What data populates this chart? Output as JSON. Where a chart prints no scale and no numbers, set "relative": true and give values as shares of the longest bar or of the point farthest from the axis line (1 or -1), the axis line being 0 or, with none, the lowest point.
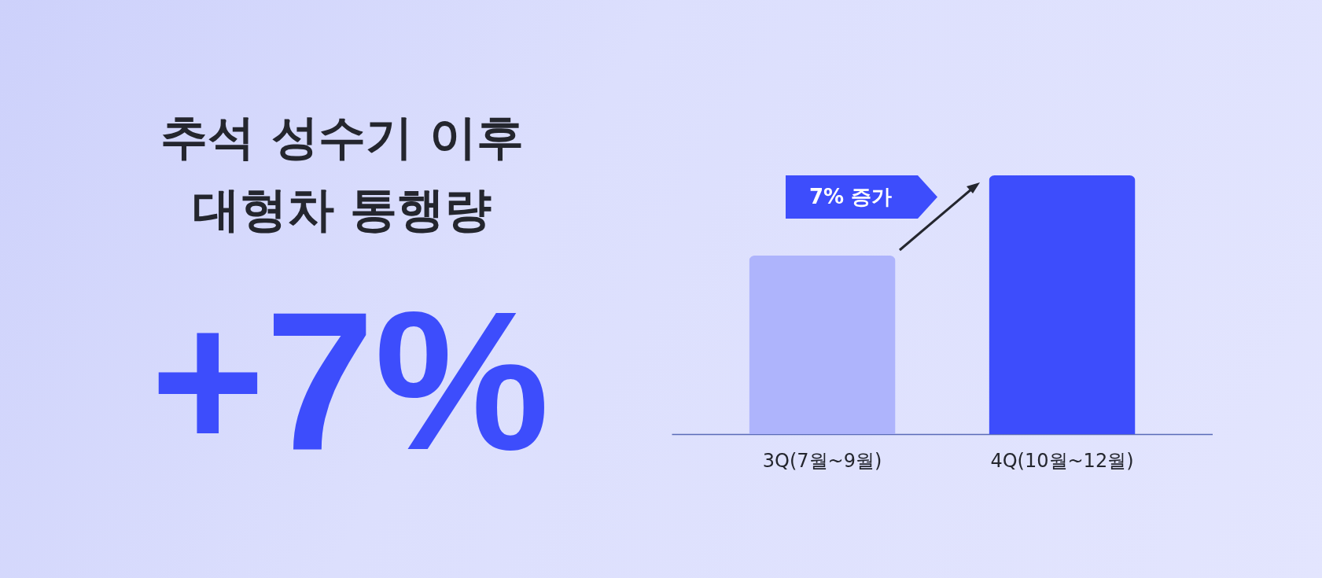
{
  "chart_data": {
    "type": "bar",
    "title": "추석 성수기 이후\n대형차 통행량",
    "categories": [
      "3Q(7월~9월)",
      "4Q(10월~12월)"
    ],
    "values": [
      0.69,
      1
    ],
    "colors": [
      "#aeb4fc",
      "#3d4dfc"
    ],
    "relative": true,
    "grid": false,
    "annotations": [
      "+7%",
      "7% 증가"
    ]
  }
}
